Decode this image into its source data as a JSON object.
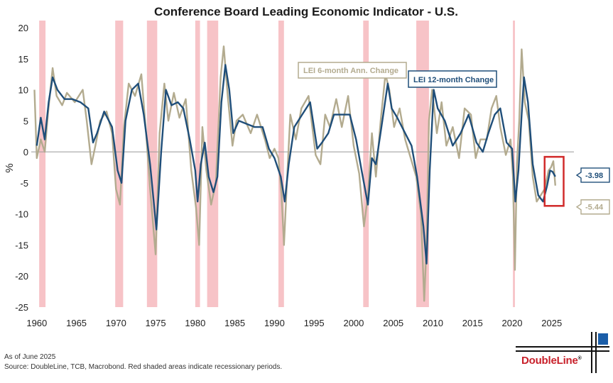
{
  "chart_data": {
    "type": "line",
    "title": "Conference Board Leading Economic Indicator - U.S.",
    "xlabel": "",
    "ylabel": "%",
    "xlim": [
      1959.3,
      2027.8
    ],
    "ylim": [
      -25,
      20
    ],
    "x_ticks": [
      1960,
      1965,
      1970,
      1975,
      1980,
      1985,
      1990,
      1995,
      2000,
      2005,
      2010,
      2015,
      2020,
      2025
    ],
    "y_ticks": [
      20,
      15,
      10,
      5,
      0,
      -5,
      -10,
      -15,
      -20,
      -25
    ],
    "recessions": [
      [
        1960.3,
        1961.1
      ],
      [
        1969.9,
        1970.9
      ],
      [
        1973.9,
        1975.2
      ],
      [
        1980.0,
        1980.6
      ],
      [
        1981.5,
        1982.9
      ],
      [
        1990.5,
        1991.2
      ],
      [
        2001.2,
        2001.9
      ],
      [
        2007.9,
        2009.5
      ],
      [
        2020.1,
        2020.35
      ]
    ],
    "series": [
      {
        "name": "LEI 12-month Change",
        "color": "#1f4e79",
        "points": [
          [
            1960,
            1
          ],
          [
            1960.5,
            5.5
          ],
          [
            1961,
            2
          ],
          [
            1961.5,
            8
          ],
          [
            1962,
            12
          ],
          [
            1962.6,
            10
          ],
          [
            1963.5,
            8.5
          ],
          [
            1964.5,
            8.5
          ],
          [
            1965.5,
            8
          ],
          [
            1966.5,
            7
          ],
          [
            1967.1,
            1.5
          ],
          [
            1967.6,
            3
          ],
          [
            1968.5,
            6.5
          ],
          [
            1969.5,
            4
          ],
          [
            1970.2,
            -3
          ],
          [
            1970.7,
            -5
          ],
          [
            1971.2,
            5
          ],
          [
            1972,
            10
          ],
          [
            1972.8,
            11
          ],
          [
            1973.5,
            6
          ],
          [
            1974.3,
            -2
          ],
          [
            1975.1,
            -12.5
          ],
          [
            1975.7,
            0
          ],
          [
            1976.3,
            10
          ],
          [
            1977,
            7.5
          ],
          [
            1977.8,
            8
          ],
          [
            1978.5,
            7
          ],
          [
            1979.3,
            2
          ],
          [
            1980.0,
            -3
          ],
          [
            1980.3,
            -8
          ],
          [
            1980.7,
            -2
          ],
          [
            1981.2,
            1.5
          ],
          [
            1981.7,
            -4
          ],
          [
            1982.3,
            -6.5
          ],
          [
            1982.8,
            -4
          ],
          [
            1983.3,
            8
          ],
          [
            1983.8,
            14
          ],
          [
            1984.3,
            10
          ],
          [
            1984.8,
            3
          ],
          [
            1985.5,
            5
          ],
          [
            1986.5,
            4.5
          ],
          [
            1987.5,
            4
          ],
          [
            1988.5,
            4
          ],
          [
            1989.3,
            0.5
          ],
          [
            1990,
            -1
          ],
          [
            1990.8,
            -4
          ],
          [
            1991.3,
            -8
          ],
          [
            1991.8,
            -2
          ],
          [
            1992.5,
            4
          ],
          [
            1993.5,
            6
          ],
          [
            1994.5,
            8
          ],
          [
            1995.4,
            0.5
          ],
          [
            1996,
            1.5
          ],
          [
            1996.8,
            3
          ],
          [
            1997.5,
            6
          ],
          [
            1998.5,
            6
          ],
          [
            1999.5,
            6
          ],
          [
            2000.3,
            2
          ],
          [
            2001,
            -3
          ],
          [
            2001.8,
            -8.5
          ],
          [
            2002.3,
            -1
          ],
          [
            2002.8,
            -2
          ],
          [
            2003.5,
            4
          ],
          [
            2004.3,
            11
          ],
          [
            2004.8,
            7
          ],
          [
            2005.5,
            5.5
          ],
          [
            2006.5,
            3
          ],
          [
            2007.3,
            1
          ],
          [
            2008,
            -4
          ],
          [
            2008.8,
            -12
          ],
          [
            2009.2,
            -18
          ],
          [
            2009.6,
            -3
          ],
          [
            2010.1,
            10
          ],
          [
            2010.6,
            7
          ],
          [
            2011.5,
            5
          ],
          [
            2012.5,
            1
          ],
          [
            2013.5,
            3
          ],
          [
            2014.5,
            6
          ],
          [
            2015.5,
            1.5
          ],
          [
            2016.3,
            0
          ],
          [
            2017,
            3
          ],
          [
            2017.8,
            6
          ],
          [
            2018.5,
            7
          ],
          [
            2019.3,
            1.5
          ],
          [
            2020,
            0.5
          ],
          [
            2020.4,
            -8
          ],
          [
            2020.8,
            -3
          ],
          [
            2021.2,
            6
          ],
          [
            2021.5,
            12
          ],
          [
            2022,
            8
          ],
          [
            2022.6,
            -2
          ],
          [
            2023.3,
            -7
          ],
          [
            2023.9,
            -8
          ],
          [
            2024.4,
            -5.5
          ],
          [
            2024.8,
            -3
          ],
          [
            2025.1,
            -3.2
          ],
          [
            2025.45,
            -3.98
          ]
        ]
      },
      {
        "name": "LEI 6-month Ann. Change",
        "color": "#b3ab8f",
        "points": [
          [
            1959.7,
            10
          ],
          [
            1960,
            -1
          ],
          [
            1960.5,
            2
          ],
          [
            1961,
            0
          ],
          [
            1961.4,
            6
          ],
          [
            1962,
            13.5
          ],
          [
            1962.5,
            9
          ],
          [
            1963.2,
            7.5
          ],
          [
            1963.8,
            9.5
          ],
          [
            1964.8,
            8
          ],
          [
            1965.8,
            10
          ],
          [
            1966.3,
            5
          ],
          [
            1966.9,
            -2
          ],
          [
            1967.4,
            1
          ],
          [
            1968,
            5
          ],
          [
            1968.8,
            6.5
          ],
          [
            1969.5,
            3
          ],
          [
            1970,
            -6
          ],
          [
            1970.5,
            -8.5
          ],
          [
            1971,
            4
          ],
          [
            1971.6,
            11
          ],
          [
            1972.4,
            9
          ],
          [
            1973.2,
            12.5
          ],
          [
            1973.8,
            3
          ],
          [
            1974.3,
            -6
          ],
          [
            1975,
            -16.5
          ],
          [
            1975.5,
            3
          ],
          [
            1976.1,
            11
          ],
          [
            1976.6,
            5
          ],
          [
            1977.3,
            9.5
          ],
          [
            1978,
            5.5
          ],
          [
            1978.8,
            8.5
          ],
          [
            1979.5,
            -3
          ],
          [
            1980.1,
            -9
          ],
          [
            1980.5,
            -15
          ],
          [
            1980.9,
            4
          ],
          [
            1981.4,
            -3
          ],
          [
            1982,
            -8.5
          ],
          [
            1982.6,
            -5
          ],
          [
            1983.2,
            12
          ],
          [
            1983.6,
            17
          ],
          [
            1984.1,
            9
          ],
          [
            1984.7,
            1
          ],
          [
            1985.2,
            5
          ],
          [
            1986,
            6
          ],
          [
            1987,
            3
          ],
          [
            1987.8,
            6
          ],
          [
            1988.8,
            2
          ],
          [
            1989.4,
            -1
          ],
          [
            1990,
            0.5
          ],
          [
            1990.5,
            -1
          ],
          [
            1990.9,
            -7
          ],
          [
            1991.2,
            -15
          ],
          [
            1991.6,
            -4
          ],
          [
            1992,
            6
          ],
          [
            1992.7,
            2
          ],
          [
            1993.4,
            7
          ],
          [
            1994.3,
            9
          ],
          [
            1995.2,
            -0.5
          ],
          [
            1995.8,
            -2
          ],
          [
            1996.4,
            6
          ],
          [
            1997,
            4
          ],
          [
            1997.8,
            8.5
          ],
          [
            1998.5,
            4
          ],
          [
            1999.3,
            9
          ],
          [
            2000,
            1
          ],
          [
            2000.7,
            -3.5
          ],
          [
            2001.3,
            -12
          ],
          [
            2001.8,
            -7
          ],
          [
            2002.3,
            3
          ],
          [
            2002.8,
            -4
          ],
          [
            2003.4,
            5
          ],
          [
            2004,
            12.5
          ],
          [
            2004.5,
            10
          ],
          [
            2005.1,
            4
          ],
          [
            2005.8,
            7
          ],
          [
            2006.5,
            2
          ],
          [
            2007.2,
            -1
          ],
          [
            2007.9,
            -4
          ],
          [
            2008.5,
            -10
          ],
          [
            2008.9,
            -24
          ],
          [
            2009.2,
            -15
          ],
          [
            2009.5,
            5
          ],
          [
            2009.9,
            10
          ],
          [
            2010.5,
            3
          ],
          [
            2011.1,
            8
          ],
          [
            2011.7,
            1
          ],
          [
            2012.5,
            4
          ],
          [
            2013.3,
            -1
          ],
          [
            2014,
            7
          ],
          [
            2014.8,
            6
          ],
          [
            2015.4,
            -1
          ],
          [
            2016,
            2
          ],
          [
            2016.8,
            2
          ],
          [
            2017.4,
            7
          ],
          [
            2018,
            9
          ],
          [
            2018.5,
            4
          ],
          [
            2019.2,
            -0.5
          ],
          [
            2019.8,
            2
          ],
          [
            2020.1,
            -4
          ],
          [
            2020.35,
            -19
          ],
          [
            2020.6,
            -2
          ],
          [
            2020.9,
            5
          ],
          [
            2021.2,
            16.5
          ],
          [
            2021.6,
            8
          ],
          [
            2022.1,
            5
          ],
          [
            2022.6,
            -4
          ],
          [
            2023.1,
            -8
          ],
          [
            2023.6,
            -7
          ],
          [
            2024.1,
            -6
          ],
          [
            2024.6,
            -3
          ],
          [
            2024.9,
            -2.5
          ],
          [
            2025.2,
            -1.5
          ],
          [
            2025.45,
            -5.44
          ]
        ]
      }
    ],
    "legend": [
      {
        "label": "LEI 6-month Ann. Change",
        "color": "#b3ab8f",
        "position": "top-center"
      },
      {
        "label": "LEI 12-month Change",
        "color": "#1f4e79",
        "position": "top-center"
      }
    ],
    "end_labels": [
      {
        "label": "-3.98",
        "color": "#1f4e79",
        "value": -3.98
      },
      {
        "label": "-5.44",
        "color": "#b3ab8f",
        "value": -5.44
      }
    ],
    "highlight_box": {
      "x0": 2024.1,
      "x1": 2026.5,
      "y0": -8.7,
      "y1": -0.8,
      "color": "#d12a2a"
    }
  },
  "footer": {
    "line1": "As of June 2025",
    "line2": "Source: DoubleLine, TCB, Macrobond. Red shaded areas indicate recessionary periods."
  },
  "logo": {
    "text": "DoubleLine",
    "mark": "®"
  }
}
